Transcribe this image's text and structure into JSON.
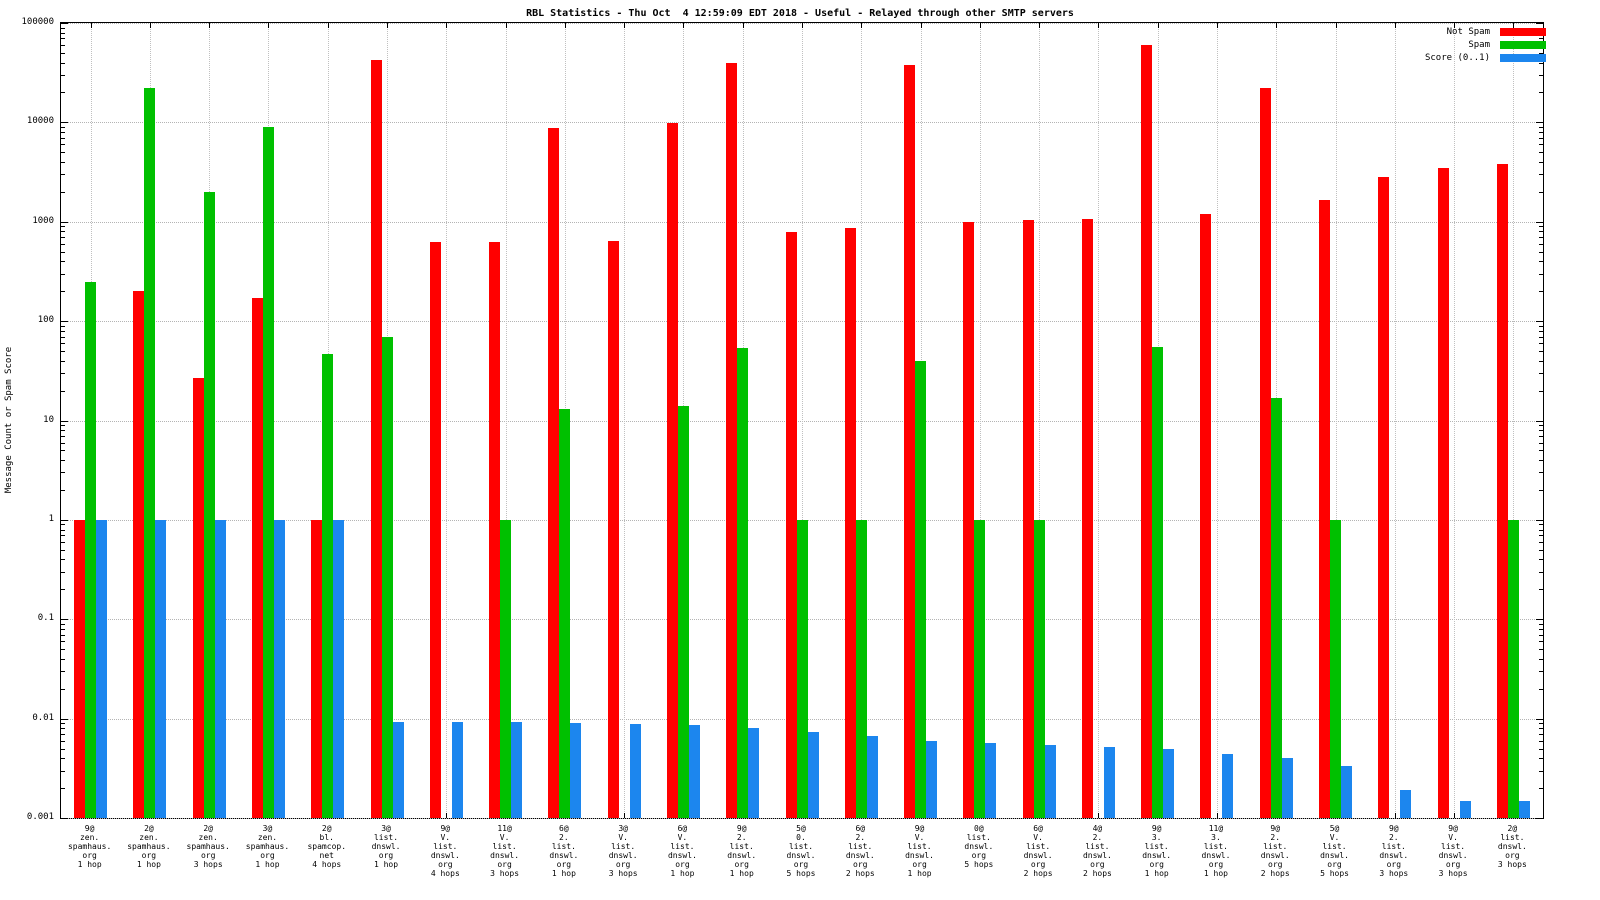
{
  "title": "RBL Statistics - Thu Oct  4 12:59:09 EDT 2018 - Useful - Relayed through other SMTP servers",
  "legend": [
    {
      "label": "Not Spam",
      "color": "#ff0000"
    },
    {
      "label": "Spam",
      "color": "#00c000"
    },
    {
      "label": "Score (0..1)",
      "color": "#1c86ee"
    }
  ],
  "chart_data": {
    "type": "bar",
    "title": "RBL Statistics - Thu Oct  4 12:59:09 EDT 2018 - Useful - Relayed through other SMTP servers",
    "ylabel": "Message Count or Spam Score",
    "xlabel": "",
    "yscale": "log",
    "ylim": [
      0.001,
      100000
    ],
    "ytick_labels": [
      "100000",
      "10000",
      "1000",
      "100",
      "10",
      "1",
      "0.1",
      "0.01",
      "0.001"
    ],
    "grid": true,
    "legend_position": "top-right",
    "categories": [
      "9@\nzen.\nspamhaus.\norg\n1 hop",
      "2@\nzen.\nspamhaus.\norg\n1 hop",
      "2@\nzen.\nspamhaus.\norg\n3 hops",
      "3@\nzen.\nspamhaus.\norg\n1 hop",
      "2@\nbl.\nspamcop.\nnet\n4 hops",
      "3@\nlist.\ndnswl.\norg\n1 hop",
      "9@\nV.\nlist.\ndnswl.\norg\n4 hops",
      "11@\nV.\nlist.\ndnswl.\norg\n3 hops",
      "6@\n2.\nlist.\ndnswl.\norg\n1 hop",
      "3@\nV.\nlist.\ndnswl.\norg\n3 hops",
      "6@\nV.\nlist.\ndnswl.\norg\n1 hop",
      "9@\n2.\nlist.\ndnswl.\norg\n1 hop",
      "5@\n0.\nlist.\ndnswl.\norg\n5 hops",
      "6@\n2.\nlist.\ndnswl.\norg\n2 hops",
      "9@\nV.\nlist.\ndnswl.\norg\n1 hop",
      "0@\nlist.\ndnswl.\norg\n5 hops",
      "6@\nV.\nlist.\ndnswl.\norg\n2 hops",
      "4@\n2.\nlist.\ndnswl.\norg\n2 hops",
      "9@\n3.\nlist.\ndnswl.\norg\n1 hop",
      "11@\n3.\nlist.\ndnswl.\norg\n1 hop",
      "9@\n2.\nlist.\ndnswl.\norg\n2 hops",
      "5@\nV.\nlist.\ndnswl.\norg\n5 hops",
      "9@\n2.\nlist.\ndnswl.\norg\n3 hops",
      "9@\nV.\nlist.\ndnswl.\norg\n3 hops",
      "2@\nlist.\ndnswl.\norg\n3 hops"
    ],
    "series": [
      {
        "name": "Not Spam",
        "color": "#ff0000",
        "values": [
          1,
          200,
          27,
          170,
          1,
          42000,
          620,
          620,
          8800,
          640,
          9800,
          40000,
          780,
          870,
          38000,
          1000,
          1030,
          1060,
          60000,
          1200,
          22000,
          1650,
          2800,
          3500,
          3800
        ]
      },
      {
        "name": "Spam",
        "color": "#00c000",
        "values": [
          250,
          22000,
          2000,
          9000,
          47,
          70,
          null,
          1,
          13,
          null,
          14,
          54,
          1,
          1,
          40,
          1,
          1,
          null,
          55,
          null,
          17,
          1,
          null,
          null,
          1
        ]
      },
      {
        "name": "Score (0..1)",
        "color": "#1c86ee",
        "values": [
          1,
          1,
          1,
          1,
          1,
          0.0092,
          0.0092,
          0.0092,
          0.009,
          0.0089,
          0.0087,
          0.008,
          0.0074,
          0.0067,
          0.0059,
          0.0057,
          0.0054,
          0.0052,
          0.0049,
          0.0044,
          0.004,
          0.0033,
          0.0019,
          0.0015,
          0.0015
        ]
      }
    ]
  }
}
